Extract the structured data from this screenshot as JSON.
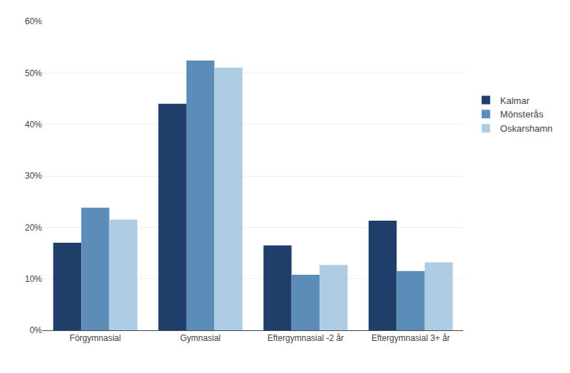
{
  "chart_data": {
    "type": "bar",
    "categories": [
      "Förgymnasial",
      "Gymnasial",
      "Eftergymnasial -2 år",
      "Eftergymnasial 3+ år"
    ],
    "series": [
      {
        "name": "Kalmar",
        "color": "#1F3F6A",
        "values": [
          0.17,
          0.44,
          0.165,
          0.213
        ]
      },
      {
        "name": "Mönsterås",
        "color": "#5B8DB8",
        "values": [
          0.238,
          0.524,
          0.108,
          0.115
        ]
      },
      {
        "name": "Oskarshamn",
        "color": "#AECCE4",
        "values": [
          0.215,
          0.51,
          0.127,
          0.132
        ]
      }
    ],
    "ylim": [
      0,
      0.6
    ],
    "yticks": [
      {
        "value": 0.0,
        "label": "0%"
      },
      {
        "value": 0.1,
        "label": "10%"
      },
      {
        "value": 0.2,
        "label": "20%"
      },
      {
        "value": 0.3,
        "label": "30%"
      },
      {
        "value": 0.4,
        "label": "40%"
      },
      {
        "value": 0.5,
        "label": "50%"
      },
      {
        "value": 0.6,
        "label": "60%"
      }
    ],
    "grid": true,
    "legend": "right"
  }
}
